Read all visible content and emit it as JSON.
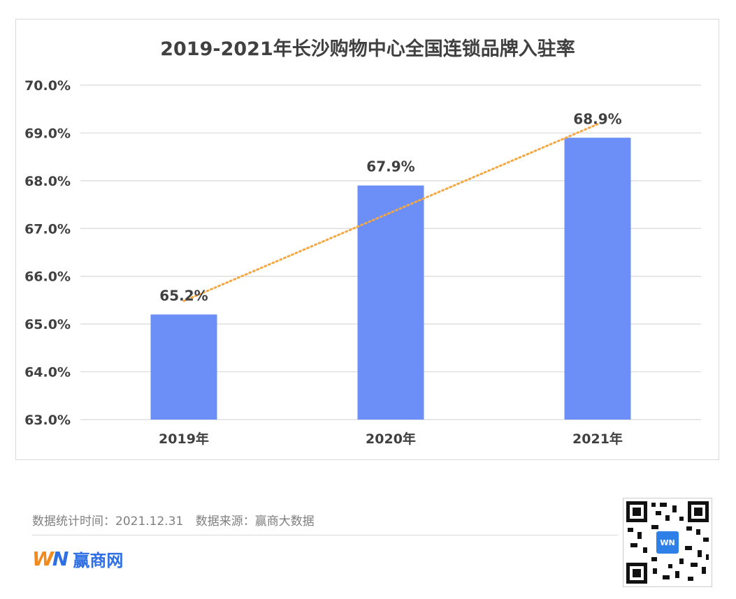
{
  "chart_data": {
    "type": "bar",
    "title": "2019-2021年长沙购物中心全国连锁品牌入驻率",
    "categories": [
      "2019年",
      "2020年",
      "2021年"
    ],
    "values": [
      65.2,
      67.9,
      68.9
    ],
    "data_labels": [
      "65.2%",
      "67.9%",
      "68.9%"
    ],
    "ylim": [
      63.0,
      70.0
    ],
    "yticks": [
      "63.0%",
      "64.0%",
      "65.0%",
      "66.0%",
      "67.0%",
      "68.0%",
      "69.0%",
      "70.0%"
    ],
    "trendline": "linear, dotted",
    "grid": true,
    "colors": {
      "bar": "#6b8ff7",
      "trend": "#f5a742",
      "grid": "#d9d9d9",
      "text": "#404040"
    }
  },
  "footer": {
    "time_label": "数据统计时间：2021.12.31",
    "source_label": "数据来源：赢商大数据",
    "logo_text": "赢商网",
    "logo_mark_w": "W",
    "logo_mark_n": "N"
  },
  "watermark_text": "赢商网"
}
